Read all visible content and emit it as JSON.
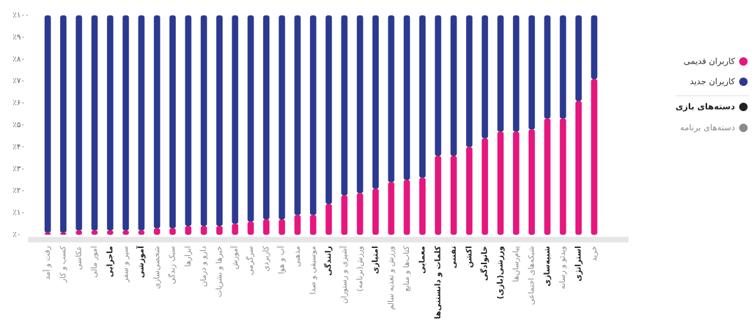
{
  "chart_data": {
    "type": "stacked_bar",
    "categories": [
      "رفت و آمد",
      "کسب و کار",
      "عکاسی",
      "امور مالی",
      "ماجرایی",
      "سیر و سفر",
      "آموزشی",
      "شخصی‌سازی",
      "سبک زندگی",
      "ابزارها",
      "دارو و درمان",
      "خبرها و نشریات",
      "آموزش",
      "سرگرمی",
      "کاربردی",
      "آب و هوا",
      "مذهبی",
      "موسیقی و صدا",
      "رانندگی",
      "آشپزی و رستوران",
      "ورزش(برنامه)",
      "امتیازی",
      "ورزش و تغذیه سالم",
      "کتاب‌ها و منابع",
      "معمایی",
      "کلمات و دانستنی‌ها",
      "تفننی",
      "اکشن",
      "خانوادگی",
      "ورزشی(بازی)",
      "پیام‌رسان‌ها",
      "شبکه‌های اجتماعی",
      "شبیه‌سازی",
      "ویدئو و رسانه",
      "استراتژی",
      "خرید"
    ],
    "series": [
      {
        "name": "کاربران قدیمی",
        "color": "#e5177e",
        "values": [
          1,
          1,
          2,
          2,
          2,
          2,
          2,
          3,
          3,
          4,
          4,
          4,
          5,
          6,
          7,
          7,
          9,
          9,
          14,
          18,
          19,
          21,
          24,
          25,
          26,
          36,
          36,
          40,
          44,
          47,
          47,
          48,
          53,
          53,
          61,
          71
        ]
      },
      {
        "name": "کاربران جدید",
        "color": "#2b3990",
        "values": [
          99,
          99,
          98,
          98,
          98,
          98,
          98,
          97,
          97,
          96,
          96,
          96,
          95,
          94,
          93,
          93,
          91,
          91,
          86,
          82,
          81,
          79,
          76,
          75,
          74,
          64,
          64,
          60,
          56,
          53,
          53,
          52,
          47,
          47,
          39,
          29
        ]
      }
    ],
    "groups": [
      {
        "name": "دسته‌های بازی",
        "color": "#222222",
        "categories": [
          "ماجرایی",
          "آموزشی",
          "رانندگی",
          "امتیازی",
          "معمایی",
          "کلمات و دانستنی‌ها",
          "تفننی",
          "اکشن",
          "خانوادگی",
          "ورزشی(بازی)",
          "شبیه‌سازی",
          "استراتژی"
        ]
      },
      {
        "name": "دسته‌های برنامه",
        "color": "#8a8a8a",
        "categories": [
          "رفت و آمد",
          "کسب و کار",
          "عکاسی",
          "امور مالی",
          "سیر و سفر",
          "شخصی‌سازی",
          "سبک زندگی",
          "ابزارها",
          "دارو و درمان",
          "خبرها و نشریات",
          "آموزش",
          "سرگرمی",
          "کاربردی",
          "آب و هوا",
          "مذهبی",
          "موسیقی و صدا",
          "آشپزی و رستوران",
          "ورزش(برنامه)",
          "ورزش و تغذیه سالم",
          "کتاب‌ها و منابع",
          "پیام‌رسان‌ها",
          "شبکه‌های اجتماعی",
          "ویدئو و رسانه",
          "خرید"
        ]
      }
    ],
    "ylim": [
      0,
      100
    ],
    "yticks": [
      {
        "value": 0,
        "label": "٪۰"
      },
      {
        "value": 10,
        "label": "٪۱۰"
      },
      {
        "value": 20,
        "label": "٪۲۰"
      },
      {
        "value": 30,
        "label": "٪۳۰"
      },
      {
        "value": 40,
        "label": "٪۴۰"
      },
      {
        "value": 50,
        "label": "٪۵۰"
      },
      {
        "value": 60,
        "label": "٪۶۰"
      },
      {
        "value": 70,
        "label": "٪۷۰"
      },
      {
        "value": 80,
        "label": "٪۸۰"
      },
      {
        "value": 90,
        "label": "٪۹۰"
      },
      {
        "value": 100,
        "label": "٪۱۰۰"
      }
    ],
    "legend": "right"
  }
}
